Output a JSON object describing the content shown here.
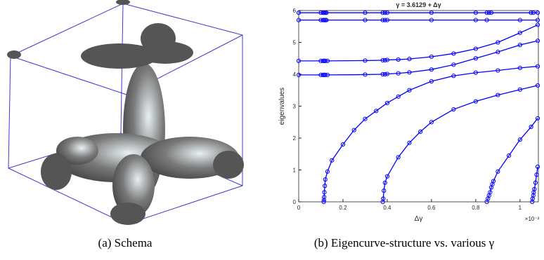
{
  "captions": {
    "a": "(a) Schema",
    "b": "(b) Eigencurve-structure vs. various γ"
  },
  "chart_data": {
    "type": "line",
    "title": "γ = 3.6129 + Δγ",
    "xlabel": "Δγ",
    "ylabel": "eigenvalues",
    "x_multiplier": "×10⁻³",
    "xlim": [
      0,
      1.083
    ],
    "ylim": [
      0,
      6
    ],
    "xticks": [
      0,
      0.2,
      0.4,
      0.6,
      0.8,
      1
    ],
    "yticks": [
      0,
      1,
      2,
      3,
      4,
      5,
      6
    ],
    "series": [
      {
        "color": "#0000ff",
        "x": [
          0,
          0.1,
          0.11,
          0.115,
          0.12,
          0.125,
          0.3,
          0.38,
          0.39,
          0.4,
          0.6,
          0.8,
          0.85,
          0.86,
          0.87,
          1.05,
          1.06,
          1.08
        ],
        "values": [
          5.93,
          5.93,
          5.93,
          5.93,
          5.93,
          5.93,
          5.93,
          5.93,
          5.93,
          5.93,
          5.93,
          5.93,
          5.93,
          5.93,
          5.93,
          5.93,
          5.93,
          5.93
        ]
      },
      {
        "color": "#0000ff",
        "x": [
          0,
          0.1,
          0.11,
          0.115,
          0.12,
          0.125,
          0.3,
          0.38,
          0.39,
          0.4,
          0.6,
          0.8,
          0.85,
          1.0,
          1.08
        ],
        "values": [
          5.7,
          5.7,
          5.7,
          5.7,
          5.7,
          5.7,
          5.7,
          5.7,
          5.7,
          5.7,
          5.7,
          5.7,
          5.7,
          5.7,
          5.7
        ]
      },
      {
        "color": "#0000ff",
        "x": [
          0,
          0.1,
          0.11,
          0.115,
          0.12,
          0.13,
          0.3,
          0.38,
          0.39,
          0.4,
          0.45,
          0.5,
          0.6,
          0.7,
          0.8,
          0.9,
          1.0,
          1.08
        ],
        "values": [
          4.42,
          4.42,
          4.42,
          4.42,
          4.42,
          4.42,
          4.43,
          4.44,
          4.44,
          4.45,
          4.46,
          4.48,
          4.55,
          4.65,
          4.8,
          5.0,
          5.3,
          5.55
        ]
      },
      {
        "color": "#0000ff",
        "x": [
          0,
          0.1,
          0.11,
          0.115,
          0.12,
          0.13,
          0.3,
          0.38,
          0.39,
          0.4,
          0.45,
          0.5,
          0.6,
          0.7,
          0.8,
          0.9,
          1.0,
          1.08
        ],
        "values": [
          3.98,
          3.98,
          3.98,
          3.98,
          3.98,
          3.98,
          3.99,
          4.0,
          4.0,
          4.01,
          4.03,
          4.06,
          4.15,
          4.3,
          4.5,
          4.7,
          4.92,
          5.05
        ]
      },
      {
        "color": "#0000ff",
        "x": [
          0.113,
          0.114,
          0.115,
          0.116,
          0.118,
          0.12,
          0.13,
          0.15,
          0.2,
          0.25,
          0.3,
          0.35,
          0.4,
          0.45,
          0.5,
          0.6,
          0.7,
          0.8,
          0.9,
          1.0,
          1.08
        ],
        "values": [
          0,
          0.05,
          0.15,
          0.3,
          0.5,
          0.7,
          0.95,
          1.3,
          1.8,
          2.25,
          2.6,
          2.85,
          3.1,
          3.3,
          3.5,
          3.78,
          3.95,
          4.05,
          4.12,
          4.2,
          4.25
        ]
      },
      {
        "color": "#0000ff",
        "x": [
          0.38,
          0.382,
          0.385,
          0.39,
          0.4,
          0.45,
          0.5,
          0.55,
          0.6,
          0.7,
          0.8,
          0.9,
          1.0,
          1.08
        ],
        "values": [
          0,
          0.1,
          0.35,
          0.6,
          0.8,
          1.4,
          1.85,
          2.2,
          2.5,
          2.9,
          3.15,
          3.35,
          3.52,
          3.65
        ]
      },
      {
        "color": "#0000ff",
        "x": [
          0.85,
          0.855,
          0.86,
          0.865,
          0.87,
          0.875,
          0.88,
          0.9,
          0.95,
          1.0,
          1.05,
          1.08
        ],
        "values": [
          0,
          0.1,
          0.2,
          0.3,
          0.45,
          0.55,
          0.65,
          0.95,
          1.45,
          1.95,
          2.35,
          2.62
        ]
      },
      {
        "color": "#0000ff",
        "x": [
          1.055,
          1.057,
          1.06,
          1.062,
          1.065,
          1.07,
          1.075,
          1.08
        ],
        "values": [
          0,
          0.1,
          0.2,
          0.3,
          0.4,
          0.6,
          0.85,
          1.1
        ]
      }
    ]
  }
}
